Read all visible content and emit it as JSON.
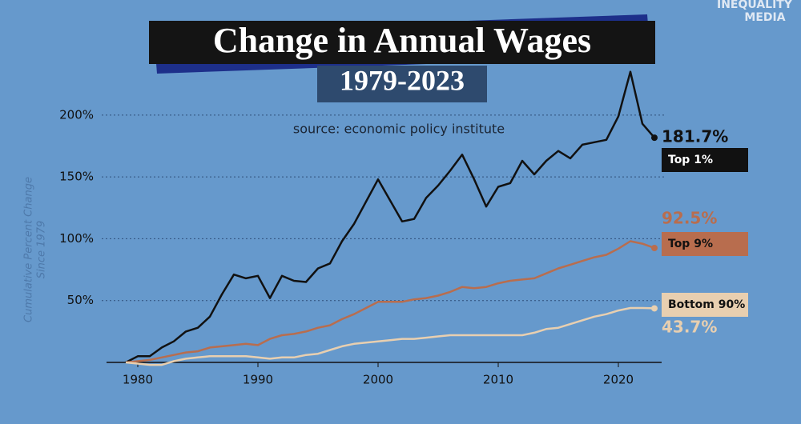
{
  "chart_data": {
    "type": "line",
    "title": "Change in Annual Wages",
    "subtitle": "1979-2023",
    "source": "source: economic policy institute",
    "y_label": [
      "Cumulative Percent Change",
      "Since 1979"
    ],
    "brand": [
      "INEQUALITY",
      "MEDIA"
    ],
    "x": [
      1979,
      1980,
      1981,
      1982,
      1983,
      1984,
      1985,
      1986,
      1987,
      1988,
      1989,
      1990,
      1991,
      1992,
      1993,
      1994,
      1995,
      1996,
      1997,
      1998,
      1999,
      2000,
      2001,
      2002,
      2003,
      2004,
      2005,
      2006,
      2007,
      2008,
      2009,
      2010,
      2011,
      2012,
      2013,
      2014,
      2015,
      2016,
      2017,
      2018,
      2019,
      2020,
      2021,
      2022,
      2023
    ],
    "series": [
      {
        "name": "Top 1%",
        "color": "#111111",
        "end_label": "181.7%",
        "values": [
          0,
          5,
          5,
          12,
          17,
          25,
          28,
          37,
          55,
          71,
          68,
          70,
          52,
          70,
          66,
          65,
          76,
          80,
          98,
          112,
          130,
          148,
          131,
          114,
          116,
          133,
          143,
          155,
          168,
          148,
          126,
          142,
          145,
          163,
          152,
          163,
          171,
          165,
          176,
          178,
          180,
          199,
          235,
          193,
          181.7
        ]
      },
      {
        "name": "Top 9%",
        "color": "#b86d4e",
        "end_label": "92.5%",
        "values": [
          0,
          1,
          2,
          4,
          6,
          8,
          9,
          12,
          13,
          14,
          15,
          14,
          19,
          22,
          23,
          25,
          28,
          30,
          35,
          39,
          44,
          49,
          49,
          49,
          51,
          52,
          54,
          57,
          61,
          60,
          61,
          64,
          66,
          67,
          68,
          72,
          76,
          79,
          82,
          85,
          87,
          92,
          98,
          96,
          92.5
        ]
      },
      {
        "name": "Bottom 90%",
        "color": "#e8cfb0",
        "end_label": "43.7%",
        "values": [
          0,
          -1,
          -2,
          -2,
          1,
          3,
          4,
          5,
          5,
          5,
          5,
          4,
          3,
          4,
          4,
          6,
          7,
          10,
          13,
          15,
          16,
          17,
          18,
          19,
          19,
          20,
          21,
          22,
          22,
          22,
          22,
          22,
          22,
          22,
          24,
          27,
          28,
          31,
          34,
          37,
          39,
          42,
          44,
          44,
          43.7
        ]
      }
    ],
    "xlim": [
      1977,
      2024
    ],
    "ylim": [
      0,
      240
    ],
    "xticks": [
      1980,
      1990,
      2000,
      2010,
      2020
    ],
    "yticks": [
      {
        "value": 50,
        "label": "50%"
      },
      {
        "value": 100,
        "label": "100%"
      },
      {
        "value": 150,
        "label": "150%"
      },
      {
        "value": 200,
        "label": "200%"
      }
    ],
    "grid": true
  }
}
